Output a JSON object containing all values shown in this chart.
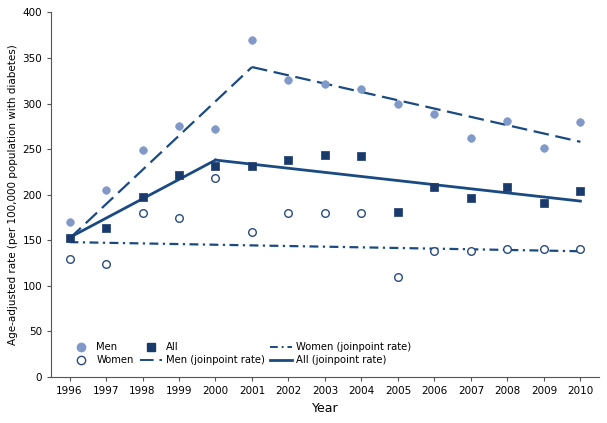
{
  "years": [
    1996,
    1997,
    1998,
    1999,
    2000,
    2001,
    2002,
    2003,
    2004,
    2005,
    2006,
    2007,
    2008,
    2009,
    2010
  ],
  "men_scatter": [
    170,
    205,
    249,
    275,
    272,
    370,
    326,
    321,
    316,
    300,
    288,
    262,
    281,
    251,
    280
  ],
  "women_scatter": [
    130,
    124,
    180,
    175,
    218,
    159,
    180,
    180,
    180,
    110,
    138,
    138,
    140,
    140,
    140
  ],
  "all_scatter": [
    153,
    163,
    197,
    222,
    231,
    232,
    238,
    243,
    242,
    181,
    208,
    196,
    208,
    191,
    204
  ],
  "men_joinpoint": {
    "x": [
      1996,
      2001,
      2010
    ],
    "y": [
      152,
      340,
      258
    ]
  },
  "women_joinpoint": {
    "x": [
      1996,
      2010
    ],
    "y": [
      148,
      138
    ]
  },
  "all_joinpoint": {
    "x": [
      1996,
      2000,
      2010
    ],
    "y": [
      153,
      238,
      193
    ]
  },
  "men_scatter_color": "#8099c8",
  "men_edge_color": "#8099c8",
  "women_edge_color": "#2a4a7f",
  "all_scatter_color": "#1a3a6b",
  "line_color": "#1a4a82",
  "ylim": [
    0,
    400
  ],
  "yticks": [
    0,
    50,
    100,
    150,
    200,
    250,
    300,
    350,
    400
  ],
  "xlabel": "Year",
  "ylabel": "Age-adjusted rate (per 100,000 population with diabetes)",
  "figsize": [
    6.07,
    4.23
  ],
  "dpi": 100
}
